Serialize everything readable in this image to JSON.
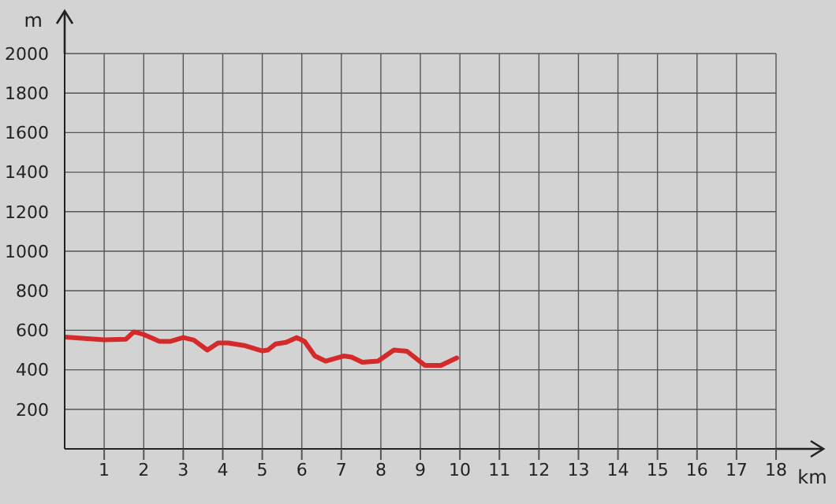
{
  "chart_data": {
    "type": "line",
    "xlabel": "km",
    "ylabel": "m",
    "series": [
      {
        "color": "#d42a2a",
        "x": [
          0,
          1,
          1.55,
          1.75,
          2,
          2.4,
          2.68,
          3,
          3.27,
          3.61,
          3.88,
          4.14,
          4.54,
          5,
          5.14,
          5.34,
          5.6,
          5.87,
          6.07,
          6.33,
          6.6,
          7.06,
          7.26,
          7.53,
          7.93,
          8.33,
          8.66,
          9.12,
          9.52,
          9.92
        ],
        "values": [
          566,
          552,
          555,
          592,
          579,
          544,
          544,
          563,
          550,
          500,
          536,
          536,
          523,
          496,
          500,
          531,
          539,
          563,
          544,
          470,
          444,
          470,
          464,
          438,
          444,
          500,
          494,
          422,
          422,
          460
        ]
      }
    ],
    "xlim": [
      0,
      18
    ],
    "xticks": [
      1,
      2,
      3,
      4,
      5,
      6,
      7,
      8,
      9,
      10,
      11,
      12,
      13,
      14,
      15,
      16,
      17,
      18
    ],
    "ylim": [
      0,
      2000
    ],
    "yticks": [
      200,
      400,
      600,
      800,
      1000,
      1200,
      1400,
      1600,
      1800,
      2000
    ],
    "grid": true,
    "marker": "none",
    "line_style": "solid"
  }
}
